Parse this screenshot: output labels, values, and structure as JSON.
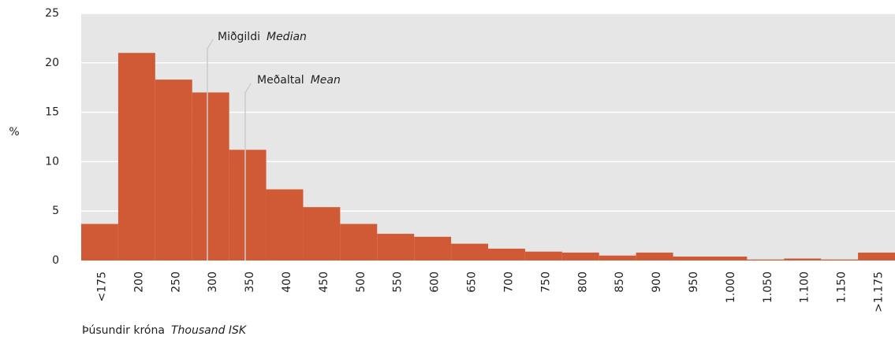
{
  "chart_data": {
    "type": "bar",
    "y_label": "%",
    "x_label": {
      "text": "Þúsundir króna",
      "text_en": "Thousand ISK"
    },
    "annotations": [
      {
        "text": "Miðgildi",
        "text_en": "Median"
      },
      {
        "text": "Meðaltal",
        "text_en": "Mean"
      }
    ],
    "categories": [
      "<175",
      "200",
      "250",
      "300",
      "350",
      "400",
      "450",
      "500",
      "550",
      "600",
      "650",
      "700",
      "750",
      "800",
      "850",
      "900",
      "950",
      "1.000",
      "1.050",
      "1.100",
      "1.150",
      ">1.175"
    ],
    "values": [
      3.7,
      21,
      18.3,
      17,
      11.2,
      7.2,
      5.4,
      3.7,
      2.7,
      2.4,
      1.7,
      1.2,
      0.9,
      0.8,
      0.5,
      0.8,
      0.4,
      0.4,
      0.1,
      0.2,
      0.1,
      0.8
    ],
    "color": "#d05a35",
    "ylim": [
      0,
      25
    ],
    "yticks": [
      0,
      5,
      10,
      15,
      20,
      25
    ],
    "grid": true
  }
}
